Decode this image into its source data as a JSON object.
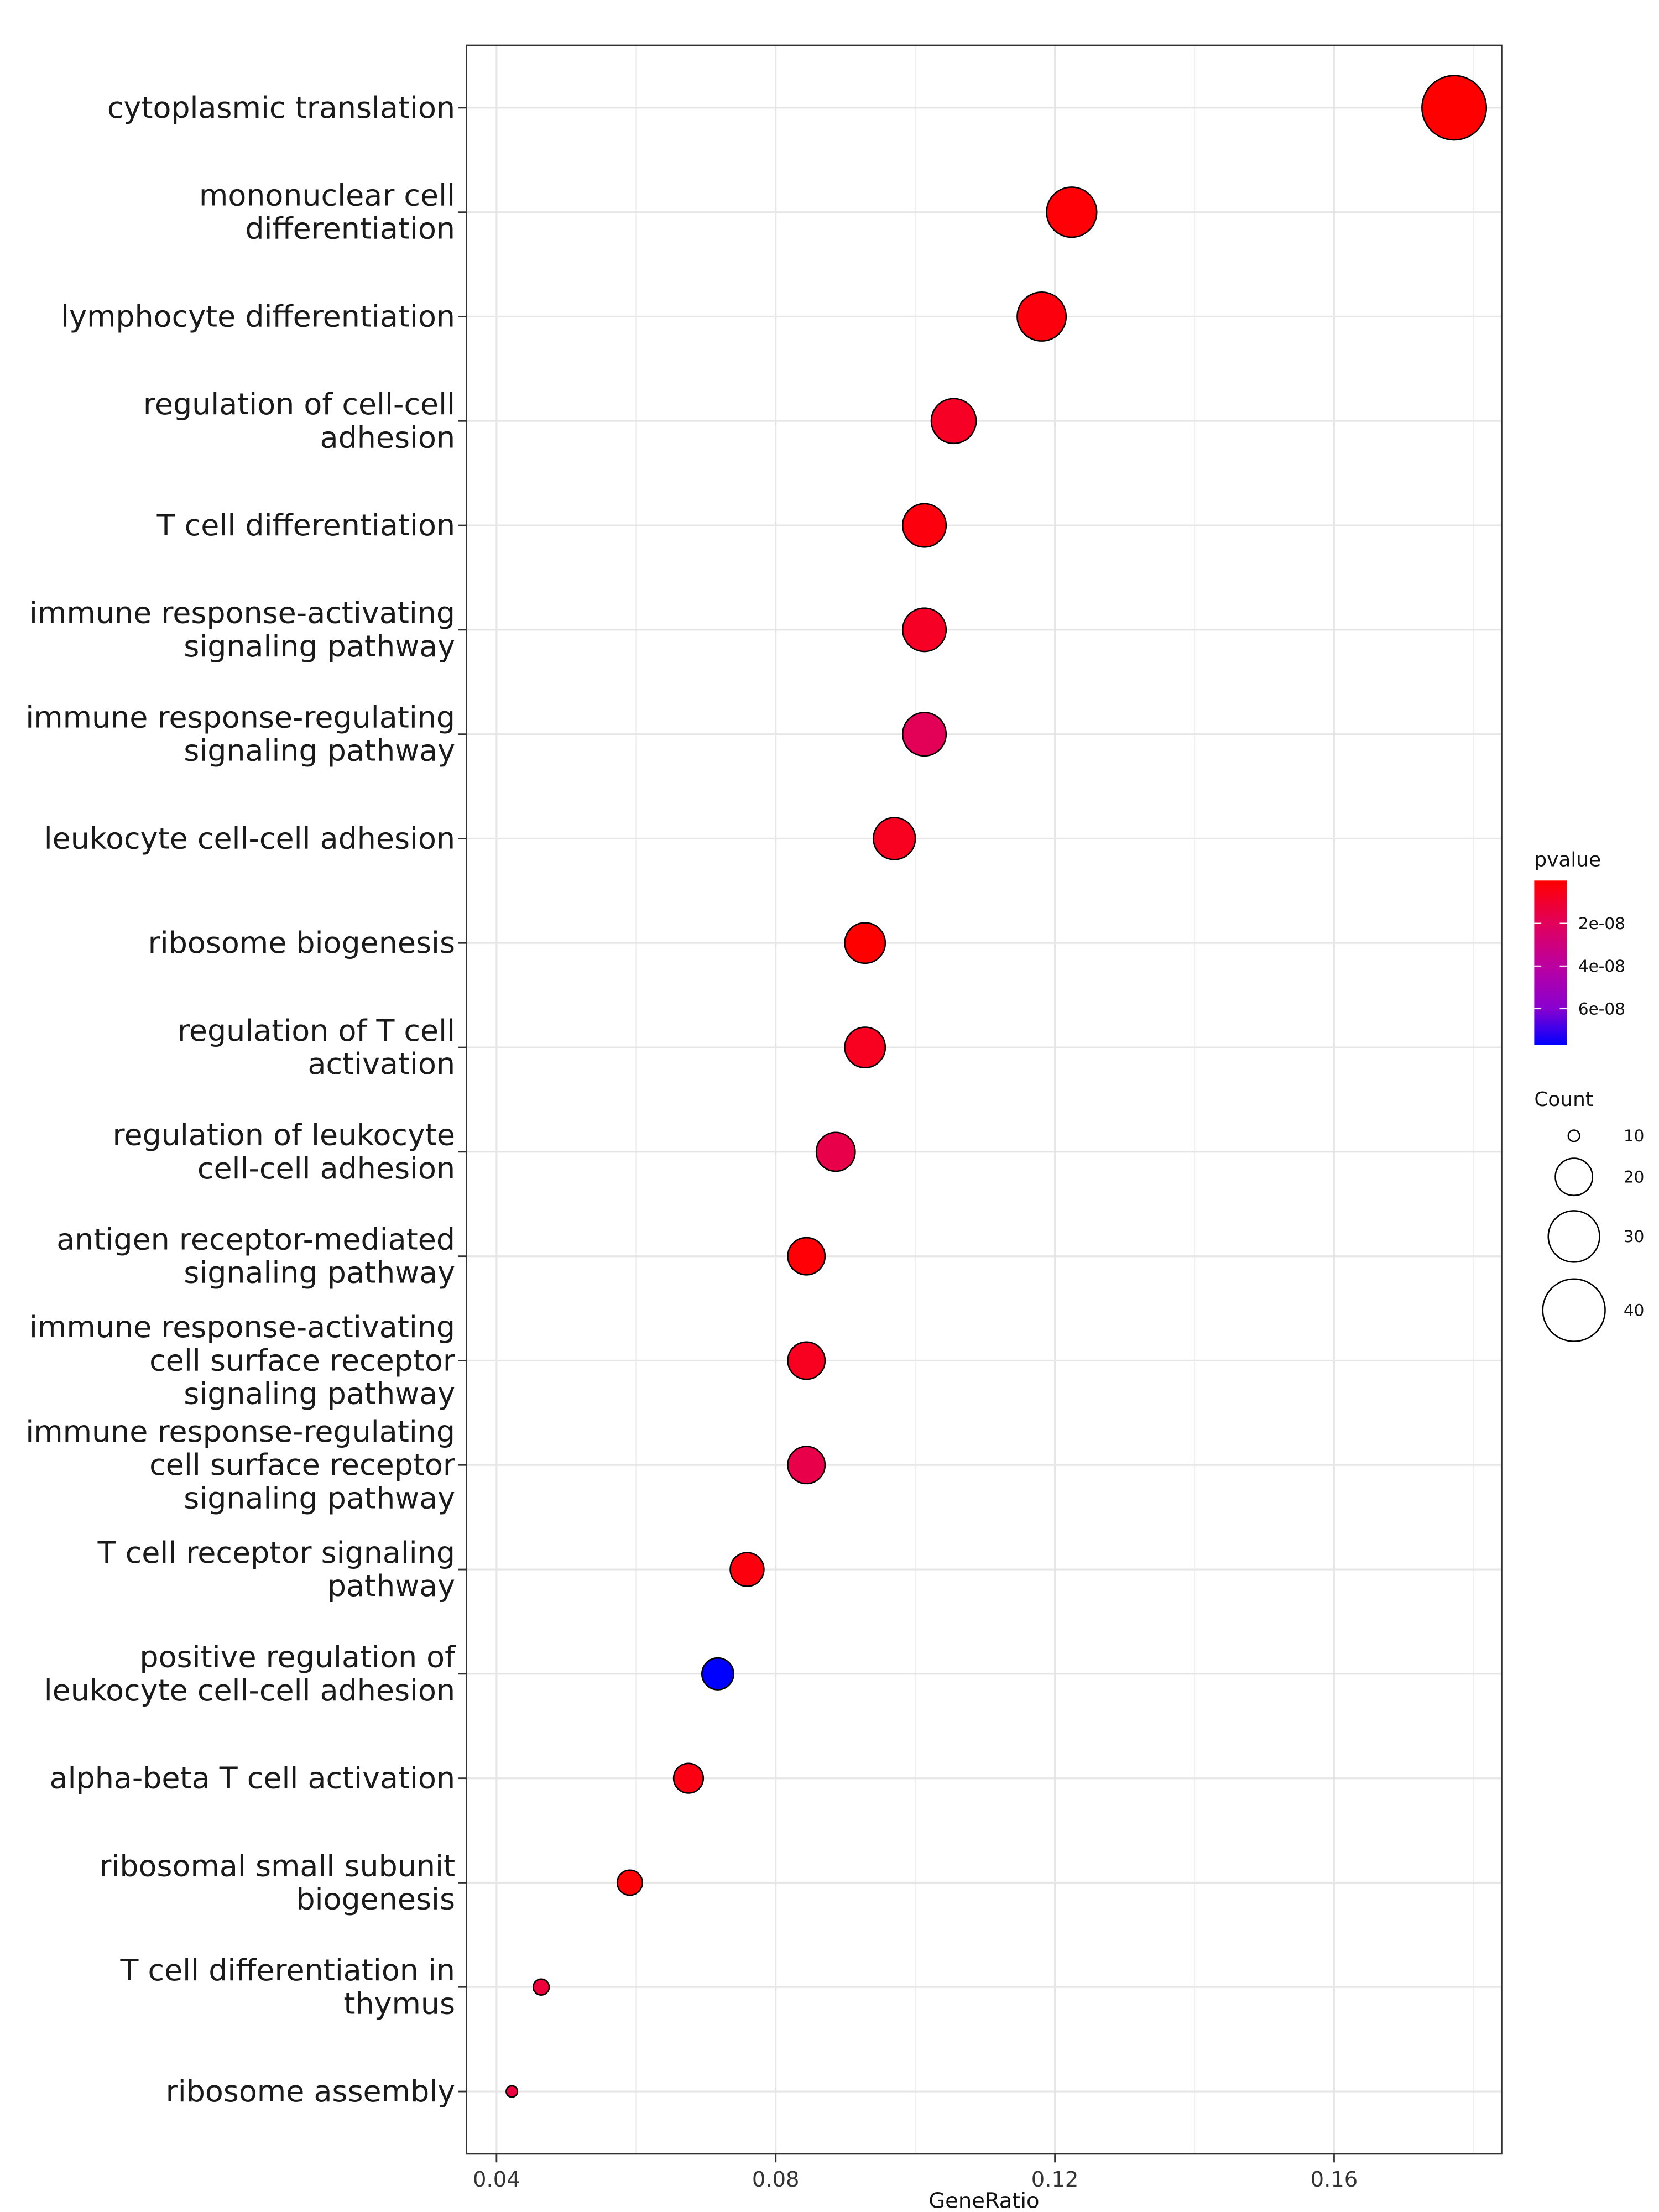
{
  "chart_data": {
    "type": "scatter",
    "subtype": "dot plot",
    "title": "",
    "xlabel": "GeneRatio",
    "ylabel": "",
    "xlim": [
      0.0357,
      0.184
    ],
    "xticks": [
      "0.04",
      "0.08",
      "0.12",
      "0.16"
    ],
    "grid": true,
    "legend_position": "right",
    "points": [
      {
        "label": "cytoplasmic translation",
        "x": 0.1772,
        "count": 42,
        "pvalue": 1e-12
      },
      {
        "label": "mononuclear cell differentiation",
        "x": 0.1224,
        "count": 29,
        "pvalue": 1e-09
      },
      {
        "label": "lymphocyte differentiation",
        "x": 0.1181,
        "count": 28,
        "pvalue": 2e-09
      },
      {
        "label": "regulation of cell-cell adhesion",
        "x": 0.1055,
        "count": 25,
        "pvalue": 6e-09
      },
      {
        "label": "T cell differentiation",
        "x": 0.1013,
        "count": 24,
        "pvalue": 2e-09
      },
      {
        "label": "immune response-activating signaling pathway",
        "x": 0.1013,
        "count": 24,
        "pvalue": 6e-09
      },
      {
        "label": "immune response-regulating signaling pathway",
        "x": 0.1013,
        "count": 24,
        "pvalue": 1.9e-08
      },
      {
        "label": "leukocyte cell-cell adhesion",
        "x": 0.097,
        "count": 23,
        "pvalue": 5e-09
      },
      {
        "label": "ribosome biogenesis",
        "x": 0.0928,
        "count": 22,
        "pvalue": 1e-10
      },
      {
        "label": "regulation of T cell activation",
        "x": 0.0928,
        "count": 22,
        "pvalue": 5e-09
      },
      {
        "label": "regulation of leukocyte cell-cell adhesion",
        "x": 0.0886,
        "count": 21,
        "pvalue": 1.5e-08
      },
      {
        "label": "antigen receptor-mediated signaling pathway",
        "x": 0.0844,
        "count": 20,
        "pvalue": 1e-09
      },
      {
        "label": "immune response-activating cell surface receptor signaling pathway",
        "x": 0.0844,
        "count": 20,
        "pvalue": 5e-09
      },
      {
        "label": "immune response-regulating cell surface receptor signaling pathway",
        "x": 0.0844,
        "count": 20,
        "pvalue": 1.5e-08
      },
      {
        "label": "T cell receptor signaling pathway",
        "x": 0.0759,
        "count": 18,
        "pvalue": 2e-09
      },
      {
        "label": "positive regulation of leukocyte cell-cell adhesion",
        "x": 0.0717,
        "count": 17,
        "pvalue": 7.7e-08
      },
      {
        "label": "alpha-beta T cell activation",
        "x": 0.0675,
        "count": 16,
        "pvalue": 3e-09
      },
      {
        "label": "ribosomal small subunit biogenesis",
        "x": 0.0591,
        "count": 14,
        "pvalue": 1e-09
      },
      {
        "label": "T cell differentiation in thymus",
        "x": 0.0464,
        "count": 11,
        "pvalue": 1e-08
      },
      {
        "label": "ribosome assembly",
        "x": 0.0422,
        "count": 10,
        "pvalue": 1.2e-08
      }
    ],
    "color_legend": {
      "title": "pvalue",
      "low_color": "#ff0000",
      "high_color": "#0000ff",
      "ticks": [
        "2e-08",
        "4e-08",
        "6e-08"
      ],
      "tick_values": [
        2e-08,
        4e-08,
        6e-08
      ]
    },
    "size_legend": {
      "title": "Count",
      "values": [
        10,
        20,
        30,
        40
      ],
      "labels": [
        "10",
        "20",
        "30",
        "40"
      ]
    }
  }
}
